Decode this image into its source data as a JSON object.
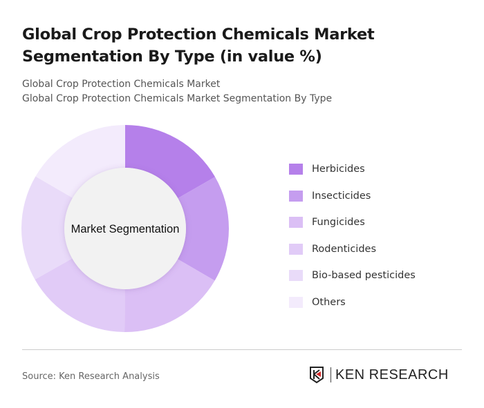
{
  "title": "Global Crop Protection Chemicals Market Segmentation By Type (in value %)",
  "subtitles": [
    "Global Crop Protection Chemicals Market",
    "Global Crop Protection Chemicals Market Segmentation By Type"
  ],
  "chart_data": {
    "type": "pie",
    "donut": true,
    "center_label": "Market Segmentation",
    "categories": [
      "Herbicides",
      "Insecticides",
      "Fungicides",
      "Rodenticides",
      "Bio-based pesticides",
      "Others"
    ],
    "values": [
      16.7,
      16.7,
      16.7,
      16.7,
      16.6,
      16.6
    ],
    "colors": [
      "#b580ea",
      "#c59def",
      "#dbbff5",
      "#e1cbf7",
      "#e9dbf9",
      "#f3ebfc"
    ],
    "legend_position": "right"
  },
  "source": "Source: Ken Research Analysis",
  "logo": {
    "text": "KEN RESEARCH"
  }
}
